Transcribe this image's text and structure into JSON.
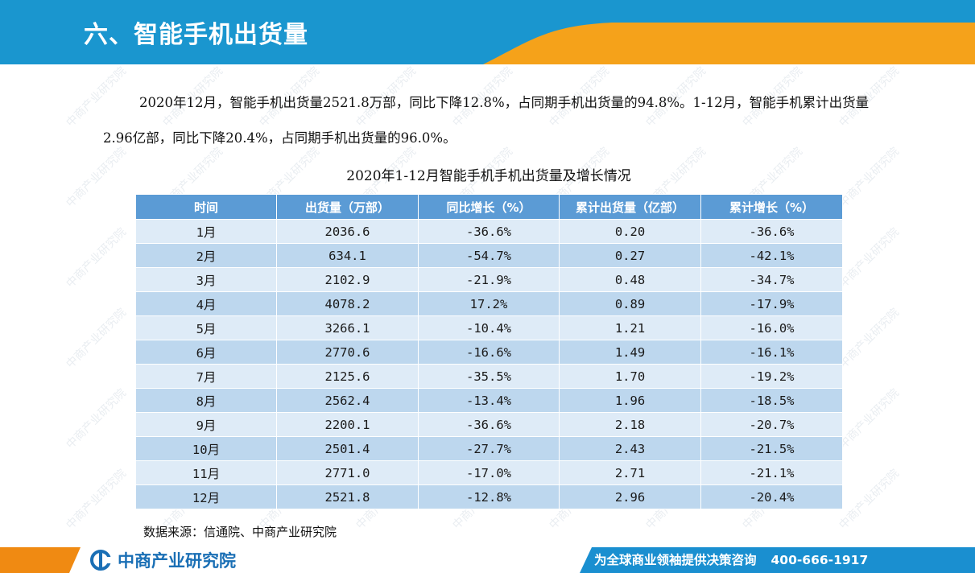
{
  "header": {
    "title": "六、智能手机出货量"
  },
  "intro": {
    "paragraph": "2020年12月，智能手机出货量2521.8万部，同比下降12.8%，占同期手机出货量的94.8%。1-12月，智能手机累计出货量2.96亿部，同比下降20.4%，占同期手机出货量的96.0%。"
  },
  "table": {
    "caption": "2020年1-12月智能手机手机出货量及增长情况",
    "columns": [
      "时间",
      "出货量（万部）",
      "同比增长（%）",
      "累计出货量（亿部）",
      "累计增长（%）"
    ],
    "rows": [
      [
        "1月",
        "2036.6",
        "-36.6%",
        "0.20",
        "-36.6%"
      ],
      [
        "2月",
        "634.1",
        "-54.7%",
        "0.27",
        "-42.1%"
      ],
      [
        "3月",
        "2102.9",
        "-21.9%",
        "0.48",
        "-34.7%"
      ],
      [
        "4月",
        "4078.2",
        "17.2%",
        "0.89",
        "-17.9%"
      ],
      [
        "5月",
        "3266.1",
        "-10.4%",
        "1.21",
        "-16.0%"
      ],
      [
        "6月",
        "2770.6",
        "-16.6%",
        "1.49",
        "-16.1%"
      ],
      [
        "7月",
        "2125.6",
        "-35.5%",
        "1.70",
        "-19.2%"
      ],
      [
        "8月",
        "2562.4",
        "-13.4%",
        "1.96",
        "-18.5%"
      ],
      [
        "9月",
        "2200.1",
        "-36.6%",
        "2.18",
        "-20.7%"
      ],
      [
        "10月",
        "2501.4",
        "-27.7%",
        "2.43",
        "-21.5%"
      ],
      [
        "11月",
        "2771.0",
        "-17.0%",
        "2.71",
        "-21.1%"
      ],
      [
        "12月",
        "2521.8",
        "-12.8%",
        "2.96",
        "-20.4%"
      ]
    ],
    "source": "数据来源：信通院、中商产业研究院"
  },
  "footer": {
    "logo_text": "中商产业研究院",
    "slogan": "为全球商业领袖提供决策咨询",
    "phone": "400-666-1917"
  },
  "watermark": {
    "text": "中商产业研究院"
  },
  "colors": {
    "header_blue": "#1a96cf",
    "header_orange": "#f5a21b",
    "table_header": "#5b9bd5",
    "row_light": "#deebf7",
    "row_dark": "#bdd7ee",
    "footer_blue": "#1a8fd0",
    "footer_orange": "#f08a12",
    "logo_blue": "#1a6fb5"
  },
  "icons": {
    "logo": "cn-logo-icon"
  }
}
